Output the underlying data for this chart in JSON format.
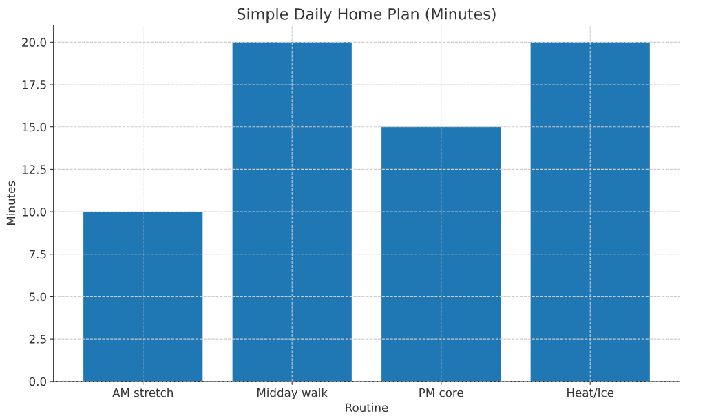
{
  "chart_data": {
    "type": "bar",
    "title": "Simple Daily Home Plan (Minutes)",
    "xlabel": "Routine",
    "ylabel": "Minutes",
    "categories": [
      "AM stretch",
      "Midday walk",
      "PM core",
      "Heat/Ice"
    ],
    "values": [
      10,
      20,
      15,
      20
    ],
    "color": "#1f77b4",
    "ylim": [
      0,
      21
    ],
    "yticks": [
      {
        "value": 0,
        "label": "0.0"
      },
      {
        "value": 2.5,
        "label": "2.5"
      },
      {
        "value": 5,
        "label": "5.0"
      },
      {
        "value": 7.5,
        "label": "7.5"
      },
      {
        "value": 10,
        "label": "10.0"
      },
      {
        "value": 12.5,
        "label": "12.5"
      },
      {
        "value": 15,
        "label": "15.0"
      },
      {
        "value": 17.5,
        "label": "17.5"
      },
      {
        "value": 20,
        "label": "20.0"
      }
    ],
    "grid": true
  }
}
